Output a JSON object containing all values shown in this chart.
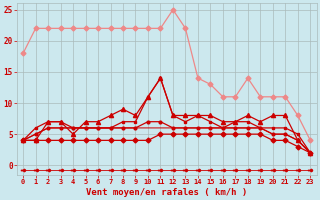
{
  "bg_color": "#cce8ee",
  "grid_color": "#aabbbb",
  "xlabel": "Vent moyen/en rafales ( km/h )",
  "xlabel_color": "#cc0000",
  "tick_color": "#cc0000",
  "ylim_min": -1.5,
  "ylim_max": 26,
  "yticks": [
    0,
    5,
    10,
    15,
    20,
    25
  ],
  "xticks": [
    0,
    1,
    2,
    3,
    4,
    5,
    6,
    7,
    8,
    9,
    10,
    11,
    12,
    13,
    14,
    15,
    16,
    17,
    18,
    19,
    20,
    21,
    22,
    23
  ],
  "pink_y": [
    18,
    22,
    22,
    22,
    22,
    22,
    22,
    22,
    22,
    22,
    22,
    22,
    25,
    22,
    14,
    13,
    11,
    11,
    14,
    11,
    11,
    11,
    8,
    4
  ],
  "red_mean_y": [
    4,
    4,
    4,
    4,
    4,
    4,
    4,
    4,
    4,
    4,
    4,
    5,
    5,
    5,
    5,
    5,
    5,
    5,
    5,
    5,
    4,
    4,
    3,
    2
  ],
  "red_gust_y": [
    4,
    4,
    7,
    7,
    5,
    7,
    7,
    8,
    9,
    8,
    11,
    14,
    8,
    8,
    8,
    8,
    7,
    7,
    8,
    7,
    8,
    8,
    4,
    2
  ],
  "red_line3_y": [
    4,
    6,
    7,
    7,
    6,
    6,
    6,
    6,
    7,
    7,
    11,
    14,
    8,
    7,
    8,
    7,
    6,
    7,
    7,
    6,
    6,
    6,
    5,
    2
  ],
  "red_line4_y": [
    4,
    5,
    6,
    6,
    6,
    6,
    6,
    6,
    6,
    6,
    7,
    7,
    6,
    6,
    6,
    6,
    6,
    6,
    6,
    6,
    5,
    5,
    4,
    2
  ],
  "red_smooth_y": [
    4,
    5,
    6,
    6,
    6,
    6,
    6,
    6,
    6,
    6,
    6,
    6,
    6,
    6,
    6,
    6,
    6,
    6,
    6,
    6,
    5,
    5,
    4,
    2
  ],
  "wind_dir_y": [
    -0.8,
    -0.8,
    -0.8,
    -0.8,
    -0.8,
    -0.8,
    -0.8,
    -0.8,
    -0.8,
    -0.8,
    -0.8,
    -0.8,
    -0.8,
    -0.8,
    -0.8,
    -0.8,
    -0.8,
    -0.8,
    -0.8,
    -0.8,
    -0.8,
    -0.8,
    -0.8,
    -0.8
  ]
}
